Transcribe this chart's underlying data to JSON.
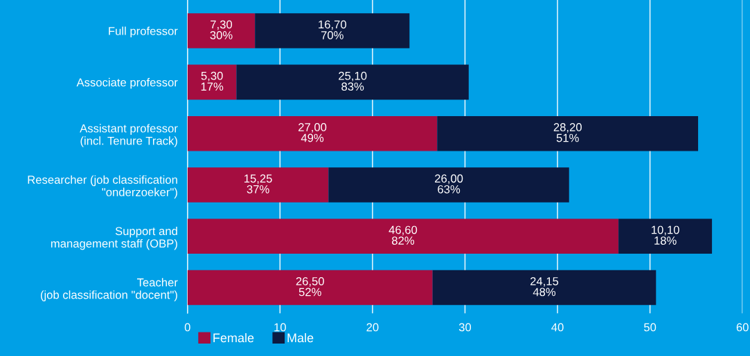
{
  "chart_data": {
    "type": "bar",
    "orientation": "horizontal",
    "stacked": true,
    "categories": [
      "Full professor",
      "Associate professor",
      "Assistant professor\n(incl. Tenure Track)",
      "Researcher (job classification\n\"onderzoeker\")",
      "Support and\nmanagement staff (OBP)",
      "Teacher\n(job classification \"docent\")"
    ],
    "series": [
      {
        "name": "Female",
        "color": "#a50d40",
        "values": [
          7.3,
          5.3,
          27.0,
          15.25,
          46.6,
          26.5
        ],
        "value_labels": [
          "7,30\n30%",
          "5,30\n17%",
          "27,00\n49%",
          "15,25\n37%",
          "46,60\n82%",
          "26,50\n52%"
        ]
      },
      {
        "name": "Male",
        "color": "#0c1a40",
        "values": [
          16.7,
          25.1,
          28.2,
          26.0,
          10.1,
          24.15
        ],
        "value_labels": [
          "16,70\n70%",
          "25,10\n83%",
          "28,20\n51%",
          "26,00\n63%",
          "10,10\n18%",
          "24,15\n48%"
        ]
      }
    ],
    "xlim": [
      0,
      60
    ],
    "xticks": [
      0,
      10,
      20,
      30,
      40,
      50,
      60
    ],
    "grid": "x",
    "legend": "bottom left"
  }
}
